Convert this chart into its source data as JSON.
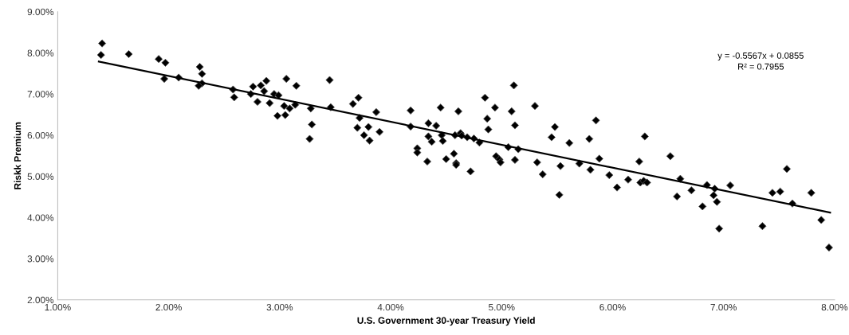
{
  "chart_data": {
    "type": "scatter",
    "xlabel": "U.S. Government 30-year Treasury Yield",
    "ylabel": "Riskk Premium",
    "annotations": [
      "y = -0.5567x + 0.0855",
      "R² = 0.7955"
    ],
    "xlim": [
      1,
      8
    ],
    "ylim": [
      2,
      9
    ],
    "xticks": [
      {
        "value": 1,
        "label": "1.00%"
      },
      {
        "value": 2,
        "label": "2.00%"
      },
      {
        "value": 3,
        "label": "3.00%"
      },
      {
        "value": 4,
        "label": "4.00%"
      },
      {
        "value": 5,
        "label": "5.00%"
      },
      {
        "value": 6,
        "label": "6.00%"
      },
      {
        "value": 7,
        "label": "7.00%"
      },
      {
        "value": 8,
        "label": "8.00%"
      }
    ],
    "yticks": [
      {
        "value": 2,
        "label": "2.00%"
      },
      {
        "value": 3,
        "label": "3.00%"
      },
      {
        "value": 4,
        "label": "4.00%"
      },
      {
        "value": 5,
        "label": "5.00%"
      },
      {
        "value": 6,
        "label": "6.00%"
      },
      {
        "value": 7,
        "label": "7.00%"
      },
      {
        "value": 8,
        "label": "8.00%"
      },
      {
        "value": 9,
        "label": "9.00%"
      }
    ],
    "grid": false,
    "legend": false,
    "series": [
      {
        "color": "#000000",
        "marker": "diamond",
        "x": [
          1.4,
          1.39,
          1.64,
          1.91,
          1.97,
          1.96,
          2.09,
          2.28,
          2.3,
          2.3,
          2.27,
          2.58,
          2.59,
          2.74,
          2.76,
          2.8,
          2.83,
          2.88,
          2.86,
          2.91,
          2.95,
          2.99,
          2.98,
          3.05,
          3.06,
          3.04,
          3.09,
          3.14,
          3.15,
          3.28,
          3.29,
          3.27,
          3.45,
          3.46,
          3.66,
          3.71,
          3.72,
          3.7,
          3.76,
          3.8,
          3.81,
          3.87,
          3.9,
          4.18,
          4.18,
          4.24,
          4.24,
          4.33,
          4.34,
          4.34,
          4.37,
          4.41,
          4.45,
          4.46,
          4.47,
          4.5,
          4.57,
          4.59,
          4.59,
          4.58,
          4.61,
          4.63,
          4.64,
          4.69,
          4.72,
          4.75,
          4.8,
          4.85,
          4.87,
          4.88,
          4.94,
          4.95,
          4.98,
          4.99,
          5.06,
          5.09,
          5.11,
          5.12,
          5.12,
          5.15,
          5.3,
          5.32,
          5.37,
          5.45,
          5.48,
          5.53,
          5.52,
          5.61,
          5.85,
          5.79,
          5.7,
          5.8,
          5.88,
          6.29,
          5.97,
          6.04,
          6.14,
          6.24,
          6.25,
          6.28,
          6.31,
          6.52,
          6.58,
          6.61,
          6.71,
          6.81,
          6.85,
          6.92,
          6.91,
          6.94,
          6.96,
          7.06,
          7.35,
          7.44,
          7.51,
          7.57,
          7.62,
          7.79,
          7.88,
          7.95
        ],
        "values": [
          8.23,
          7.95,
          7.97,
          7.85,
          7.76,
          7.37,
          7.4,
          7.66,
          7.49,
          7.26,
          7.2,
          7.11,
          6.92,
          7.0,
          7.18,
          6.81,
          7.21,
          7.32,
          7.07,
          6.78,
          7.0,
          6.97,
          6.47,
          6.49,
          7.37,
          6.71,
          6.65,
          6.74,
          7.2,
          6.65,
          6.26,
          5.91,
          7.34,
          6.68,
          6.76,
          6.91,
          6.42,
          6.18,
          6.0,
          6.2,
          5.87,
          6.56,
          6.08,
          6.6,
          6.21,
          5.68,
          5.58,
          5.36,
          6.29,
          5.97,
          5.84,
          6.23,
          6.67,
          6.0,
          5.86,
          5.42,
          5.55,
          5.32,
          5.28,
          6.0,
          6.58,
          6.05,
          5.99,
          5.95,
          5.12,
          5.92,
          5.82,
          6.91,
          6.4,
          6.14,
          6.67,
          5.49,
          5.41,
          5.34,
          5.71,
          6.58,
          7.21,
          6.24,
          5.4,
          5.66,
          6.71,
          5.34,
          5.05,
          5.95,
          6.2,
          5.25,
          4.55,
          5.81,
          6.36,
          5.91,
          5.31,
          5.16,
          5.43,
          5.97,
          5.03,
          4.73,
          4.92,
          5.36,
          4.85,
          4.89,
          4.85,
          5.49,
          4.51,
          4.94,
          4.66,
          4.27,
          4.79,
          4.7,
          4.54,
          4.38,
          3.73,
          4.78,
          3.79,
          4.6,
          4.63,
          5.18,
          4.34,
          4.6,
          3.94,
          3.27
        ]
      },
      {
        "type": "line",
        "marker": "none",
        "color": "#000000",
        "x": [
          1.37,
          7.96
        ],
        "values": [
          7.79,
          4.12
        ]
      }
    ]
  }
}
